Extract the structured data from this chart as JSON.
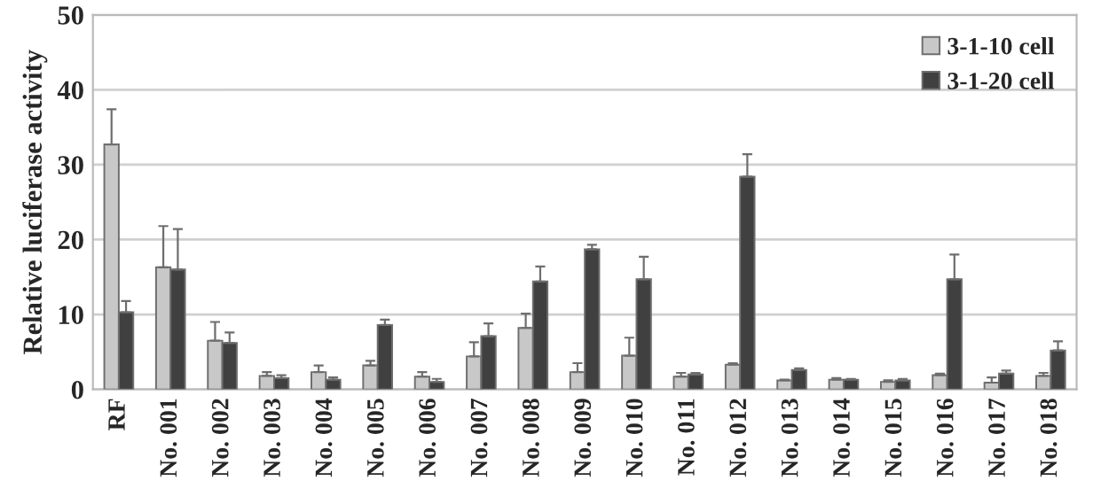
{
  "chart_data": {
    "type": "bar",
    "ylabel": "Relative luciferase activity",
    "categories": [
      "RF",
      "No. 001",
      "No. 002",
      "No. 003",
      "No. 004",
      "No. 005",
      "No. 006",
      "No. 007",
      "No. 008",
      "No. 009",
      "No. 010",
      "No. 011",
      "No. 012",
      "No. 013",
      "No. 014",
      "No. 015",
      "No. 016",
      "No. 017",
      "No. 018"
    ],
    "series": [
      {
        "name": "3-1-10 cell",
        "color": "#c8c8c8",
        "values": [
          32.7,
          16.3,
          6.5,
          1.8,
          2.3,
          3.2,
          1.7,
          4.4,
          8.2,
          2.3,
          4.5,
          1.7,
          3.3,
          1.2,
          1.3,
          1.0,
          1.9,
          0.9,
          1.8
        ],
        "errors": [
          [
            32.7,
            37.4
          ],
          [
            16.3,
            21.8
          ],
          [
            6.5,
            9.0
          ],
          [
            1.8,
            2.3
          ],
          [
            2.3,
            3.2
          ],
          [
            3.2,
            3.8
          ],
          [
            1.7,
            2.3
          ],
          [
            4.4,
            6.3
          ],
          [
            8.2,
            10.1
          ],
          [
            2.3,
            3.5
          ],
          [
            4.5,
            6.9
          ],
          [
            1.7,
            2.2
          ],
          [
            3.3,
            3.5
          ],
          [
            1.2,
            1.3
          ],
          [
            1.3,
            1.5
          ],
          [
            1.0,
            1.2
          ],
          [
            1.9,
            2.1
          ],
          [
            0.9,
            1.6
          ],
          [
            1.8,
            2.2
          ]
        ]
      },
      {
        "name": "3-1-20 cell",
        "color": "#404040",
        "values": [
          10.3,
          16.0,
          6.2,
          1.5,
          1.3,
          8.6,
          1.0,
          7.1,
          14.4,
          18.7,
          14.7,
          2.0,
          28.4,
          2.6,
          1.3,
          1.2,
          14.7,
          2.1,
          5.2
        ],
        "errors": [
          [
            10.3,
            11.8
          ],
          [
            16.0,
            21.4
          ],
          [
            6.2,
            7.6
          ],
          [
            1.5,
            1.9
          ],
          [
            1.3,
            1.6
          ],
          [
            8.6,
            9.3
          ],
          [
            1.0,
            1.4
          ],
          [
            7.1,
            8.8
          ],
          [
            14.4,
            16.4
          ],
          [
            18.7,
            19.3
          ],
          [
            14.7,
            17.7
          ],
          [
            2.0,
            2.2
          ],
          [
            28.4,
            31.4
          ],
          [
            2.6,
            2.8
          ],
          [
            1.3,
            1.4
          ],
          [
            1.2,
            1.4
          ],
          [
            14.7,
            18.0
          ],
          [
            2.1,
            2.5
          ],
          [
            5.2,
            6.4
          ]
        ]
      }
    ],
    "ylim": [
      0,
      50
    ],
    "yticks": [
      0,
      10,
      20,
      30,
      40,
      50
    ],
    "grid": "y",
    "legend": "top right"
  }
}
